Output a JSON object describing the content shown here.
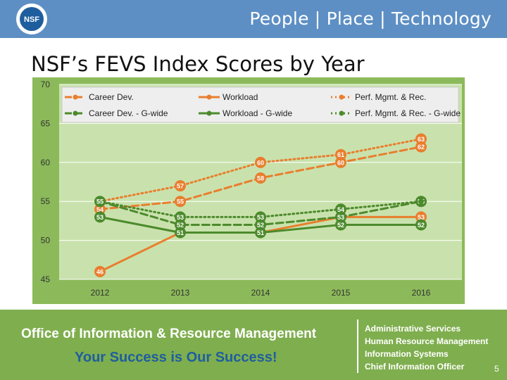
{
  "header": {
    "tagline": "People | Place | Technology",
    "logo_text": "NSF"
  },
  "page_title": "NSF’s FEVS Index Scores by Year",
  "chart_data": {
    "type": "line",
    "title": "",
    "xlabel": "",
    "ylabel": "",
    "categories": [
      "2012",
      "2013",
      "2014",
      "2015",
      "2016"
    ],
    "ylim": [
      45,
      70
    ],
    "yticks": [
      45,
      50,
      55,
      60,
      65,
      70
    ],
    "grid": true,
    "legend_position": "top",
    "series": [
      {
        "name": "Career Dev.",
        "values": [
          54,
          55,
          58,
          60,
          62
        ],
        "color": "#e97e2e",
        "dash": "10,5",
        "labels": [
          "54",
          "55",
          "58",
          "60",
          "62"
        ]
      },
      {
        "name": "Workload",
        "values": [
          46,
          51,
          51,
          53,
          53
        ],
        "color": "#e97e2e",
        "dash": "",
        "labels": [
          "46",
          "",
          "",
          "",
          "53"
        ]
      },
      {
        "name": "Perf. Mgmt. & Rec.",
        "values": [
          55,
          57,
          60,
          61,
          63
        ],
        "color": "#e97e2e",
        "dash": "2,4",
        "labels": [
          "",
          "57",
          "60",
          "61",
          "63"
        ]
      },
      {
        "name": "Career Dev. - G-wide",
        "values": [
          55,
          52,
          52,
          53,
          55
        ],
        "color": "#4c8a2c",
        "dash": "10,5",
        "labels": [
          "",
          "52",
          "52",
          "53",
          "55"
        ]
      },
      {
        "name": "Workload - G-wide",
        "values": [
          53,
          51,
          51,
          52,
          52
        ],
        "color": "#4c8a2c",
        "dash": "",
        "labels": [
          "53",
          "51",
          "51",
          "52",
          "52"
        ]
      },
      {
        "name": "Perf. Mgmt. & Rec. - G-wide",
        "values": [
          55,
          53,
          53,
          54,
          55
        ],
        "color": "#4c8a2c",
        "dash": "2,4",
        "labels": [
          "55",
          "53",
          "53",
          "54",
          ""
        ]
      }
    ]
  },
  "footer": {
    "office": "Office of Information & Resource Management",
    "slogan": "Your Success is Our Success!",
    "units": [
      "Administrative Services",
      "Human Resource Management",
      "Information Systems",
      "Chief Information Officer"
    ],
    "page_number": "5"
  }
}
